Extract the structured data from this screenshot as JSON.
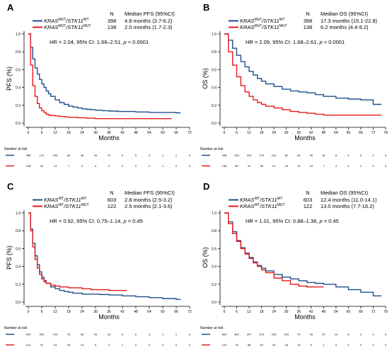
{
  "chart_data": [
    {
      "panel": "A",
      "type": "line",
      "subtype": "kaplan-meier",
      "xlabel": "Months",
      "ylabel": "PFS (%)",
      "xlim": [
        0,
        72
      ],
      "ylim": [
        0,
        1.0
      ],
      "xticks": [
        "0",
        "6",
        "12",
        "18",
        "24",
        "30",
        "36",
        "42",
        "48",
        "54",
        "60",
        "66",
        "72"
      ],
      "yticks": [
        "0.0",
        "0.2",
        "0.4",
        "0.6",
        "0.8",
        "1.0"
      ],
      "legend_header": {
        "n": "N",
        "median": "Median PFS (95%CI)"
      },
      "hr_text": {
        "pre": "HR = 2.04, 95% CI: 1.66–2.51, ",
        "p": "p",
        "post": " < 0.0001"
      },
      "risk_title": "Number at risk",
      "series": [
        {
          "name_parts": [
            "KRAS",
            "MUT",
            "/STK11",
            "WT"
          ],
          "n": "398",
          "median": "4.8 months (3.7-6.2)",
          "color": "#1f4e8c",
          "x": [
            0,
            1,
            2,
            3,
            4,
            5,
            6,
            7,
            8,
            9,
            10,
            12,
            14,
            16,
            18,
            20,
            22,
            24,
            26,
            28,
            30,
            33,
            36,
            40,
            44,
            48,
            54,
            60,
            66,
            68
          ],
          "y": [
            1.0,
            0.85,
            0.72,
            0.62,
            0.55,
            0.49,
            0.44,
            0.4,
            0.36,
            0.33,
            0.3,
            0.26,
            0.23,
            0.21,
            0.19,
            0.18,
            0.17,
            0.16,
            0.155,
            0.15,
            0.145,
            0.14,
            0.135,
            0.13,
            0.13,
            0.125,
            0.12,
            0.12,
            0.115,
            0.115
          ],
          "risk": [
            "398",
            "172",
            "100",
            "65",
            "48",
            "34",
            "21",
            "9",
            "5",
            "3",
            "1",
            "1",
            "0"
          ]
        },
        {
          "name_parts": [
            "KRAS",
            "MUT",
            "/STK11",
            "MUT"
          ],
          "n": "138",
          "median": "2.0 months (1.7-2.3)",
          "color": "#e41a1c",
          "x": [
            0,
            1,
            2,
            3,
            4,
            5,
            6,
            7,
            8,
            9,
            10,
            12,
            14,
            16,
            18,
            22,
            26,
            30,
            36,
            42,
            48,
            54,
            60,
            64
          ],
          "y": [
            1.0,
            0.65,
            0.42,
            0.3,
            0.22,
            0.17,
            0.14,
            0.12,
            0.1,
            0.09,
            0.085,
            0.08,
            0.075,
            0.07,
            0.065,
            0.06,
            0.055,
            0.05,
            0.05,
            0.05,
            0.05,
            0.05,
            0.05,
            0.05
          ],
          "risk": [
            "138",
            "22",
            "14",
            "7",
            "4",
            "4",
            "2",
            "2",
            "2",
            "2",
            "1",
            "0",
            "0"
          ]
        }
      ]
    },
    {
      "panel": "B",
      "type": "line",
      "subtype": "kaplan-meier",
      "xlabel": "Months",
      "ylabel": "OS (%)",
      "xlim": [
        0,
        78
      ],
      "ylim": [
        0,
        1.0
      ],
      "xticks": [
        "0",
        "6",
        "12",
        "18",
        "24",
        "30",
        "36",
        "42",
        "48",
        "54",
        "60",
        "66",
        "72",
        "78"
      ],
      "yticks": [
        "0.0",
        "0.2",
        "0.4",
        "0.6",
        "0.8",
        "1.0"
      ],
      "legend_header": {
        "n": "N",
        "median": "Median OS (95%CI)"
      },
      "hr_text": {
        "pre": "HR = 2.09, 95% CI: 1.68–2.61, ",
        "p": "p",
        "post": " < 0.0001"
      },
      "risk_title": "Number at risk",
      "series": [
        {
          "name_parts": [
            "KRAS",
            "MUT",
            "/STK11",
            "WT"
          ],
          "n": "398",
          "median": "17.3 months (15.1-22.8)",
          "color": "#1f4e8c",
          "x": [
            0,
            2,
            4,
            6,
            8,
            10,
            12,
            14,
            16,
            18,
            20,
            24,
            28,
            32,
            36,
            40,
            44,
            48,
            54,
            60,
            66,
            72,
            76
          ],
          "y": [
            1.0,
            0.93,
            0.84,
            0.76,
            0.69,
            0.63,
            0.58,
            0.54,
            0.5,
            0.47,
            0.44,
            0.41,
            0.38,
            0.36,
            0.35,
            0.34,
            0.32,
            0.3,
            0.28,
            0.27,
            0.26,
            0.21,
            0.21
          ],
          "risk": [
            "398",
            "290",
            "223",
            "170",
            "122",
            "82",
            "54",
            "30",
            "16",
            "8",
            "5",
            "3",
            "2",
            "0"
          ]
        },
        {
          "name_parts": [
            "KRAS",
            "MUT",
            "/STK11",
            "MUT"
          ],
          "n": "138",
          "median": "6.2 months (4.4-9.2)",
          "color": "#e41a1c",
          "x": [
            0,
            2,
            4,
            6,
            8,
            10,
            12,
            14,
            16,
            18,
            20,
            24,
            28,
            32,
            36,
            40,
            44,
            48,
            54,
            60,
            66,
            72,
            76
          ],
          "y": [
            1.0,
            0.8,
            0.65,
            0.52,
            0.42,
            0.35,
            0.3,
            0.26,
            0.23,
            0.21,
            0.19,
            0.17,
            0.15,
            0.13,
            0.12,
            0.11,
            0.1,
            0.09,
            0.09,
            0.09,
            0.09,
            0.09,
            0.09
          ],
          "risk": [
            "138",
            "80",
            "47",
            "30",
            "21",
            "18",
            "11",
            "10",
            "7",
            "4",
            "4",
            "1",
            "0",
            "0"
          ]
        }
      ]
    },
    {
      "panel": "C",
      "type": "line",
      "subtype": "kaplan-meier",
      "xlabel": "Months",
      "ylabel": "PFS (%)",
      "xlim": [
        0,
        72
      ],
      "ylim": [
        0,
        1.0
      ],
      "xticks": [
        "0",
        "6",
        "12",
        "18",
        "24",
        "30",
        "36",
        "42",
        "48",
        "54",
        "60",
        "66",
        "72"
      ],
      "yticks": [
        "0.0",
        "0.2",
        "0.4",
        "0.6",
        "0.8",
        "1.0"
      ],
      "legend_header": {
        "n": "N",
        "median": "Median PFS (95%CI)"
      },
      "hr_text": {
        "pre": "HR = 0.92, 95% CI: 0.75–1.14, ",
        "p": "p",
        "post": " = 0.45"
      },
      "risk_title": "Number at risk",
      "series": [
        {
          "name_parts": [
            "KRAS",
            "WT",
            "/STK11",
            "WT"
          ],
          "n": "603",
          "median": "2.8 months (2.5-3.2)",
          "color": "#1f4e8c",
          "x": [
            0,
            1,
            2,
            3,
            4,
            5,
            6,
            7,
            8,
            10,
            12,
            14,
            16,
            18,
            20,
            24,
            28,
            32,
            36,
            42,
            48,
            54,
            60,
            66,
            68
          ],
          "y": [
            1.0,
            0.82,
            0.66,
            0.52,
            0.42,
            0.34,
            0.28,
            0.24,
            0.21,
            0.17,
            0.15,
            0.13,
            0.12,
            0.11,
            0.1,
            0.09,
            0.09,
            0.085,
            0.08,
            0.07,
            0.06,
            0.05,
            0.04,
            0.03,
            0.03
          ],
          "risk": [
            "603",
            "205",
            "120",
            "70",
            "40",
            "29",
            "16",
            "9",
            "6",
            "3",
            "1",
            "1",
            "0"
          ]
        },
        {
          "name_parts": [
            "KRAS",
            "WT",
            "/STK11",
            "MUT"
          ],
          "n": "122",
          "median": "2.5 months (2.1-3.6)",
          "color": "#e41a1c",
          "x": [
            0,
            1,
            2,
            3,
            4,
            5,
            6,
            7,
            8,
            10,
            12,
            14,
            16,
            18,
            20,
            24,
            28,
            32,
            36,
            40,
            44
          ],
          "y": [
            1.0,
            0.8,
            0.62,
            0.48,
            0.38,
            0.31,
            0.26,
            0.23,
            0.21,
            0.19,
            0.18,
            0.17,
            0.17,
            0.16,
            0.16,
            0.15,
            0.14,
            0.14,
            0.13,
            0.13,
            0.13
          ],
          "risk": [
            "122",
            "37",
            "24",
            "20",
            "13",
            "9",
            "3",
            "1",
            "0",
            "0",
            "0",
            "0",
            "0"
          ]
        }
      ]
    },
    {
      "panel": "D",
      "type": "line",
      "subtype": "kaplan-meier",
      "xlabel": "Months",
      "ylabel": "OS (%)",
      "xlim": [
        0,
        78
      ],
      "ylim": [
        0,
        1.0
      ],
      "xticks": [
        "0",
        "6",
        "12",
        "18",
        "24",
        "30",
        "36",
        "42",
        "48",
        "54",
        "60",
        "66",
        "72",
        "78"
      ],
      "yticks": [
        "0.0",
        "0.2",
        "0.4",
        "0.6",
        "0.8",
        "1.0"
      ],
      "legend_header": {
        "n": "N",
        "median": "Median OS (95%CI)"
      },
      "hr_text": {
        "pre": "HR = 1.01, 95% CI: 0.88–1.38, ",
        "p": "p",
        "post": " = 0.45"
      },
      "risk_title": "Number at risk",
      "series": [
        {
          "name_parts": [
            "KRAS",
            "WT",
            "/STK11",
            "WT"
          ],
          "n": "603",
          "median": "12.4 months (11.0-14.1)",
          "color": "#1f4e8c",
          "x": [
            0,
            2,
            4,
            6,
            8,
            10,
            12,
            14,
            16,
            18,
            20,
            24,
            28,
            32,
            36,
            40,
            44,
            48,
            54,
            60,
            66,
            72,
            76
          ],
          "y": [
            1.0,
            0.9,
            0.79,
            0.69,
            0.61,
            0.55,
            0.5,
            0.45,
            0.41,
            0.38,
            0.35,
            0.31,
            0.28,
            0.26,
            0.24,
            0.22,
            0.21,
            0.2,
            0.17,
            0.14,
            0.11,
            0.07,
            0.07
          ],
          "risk": [
            "603",
            "462",
            "297",
            "210",
            "154",
            "103",
            "79",
            "45",
            "23",
            "10",
            "8",
            "2",
            "0",
            "0"
          ]
        },
        {
          "name_parts": [
            "KRAS",
            "WT",
            "/STK11",
            "MUT"
          ],
          "n": "122",
          "median": "13.0 months (7.7-16.2)",
          "color": "#e41a1c",
          "x": [
            0,
            2,
            4,
            6,
            8,
            10,
            12,
            14,
            16,
            18,
            20,
            24,
            28,
            32,
            36,
            40,
            44,
            48
          ],
          "y": [
            1.0,
            0.88,
            0.77,
            0.68,
            0.6,
            0.54,
            0.49,
            0.44,
            0.4,
            0.36,
            0.33,
            0.27,
            0.24,
            0.2,
            0.18,
            0.17,
            0.17,
            0.17
          ],
          "risk": [
            "122",
            "75",
            "58",
            "40",
            "29",
            "18",
            "15",
            "5",
            "2",
            "0",
            "0",
            "0",
            "0",
            "0"
          ]
        }
      ]
    }
  ]
}
